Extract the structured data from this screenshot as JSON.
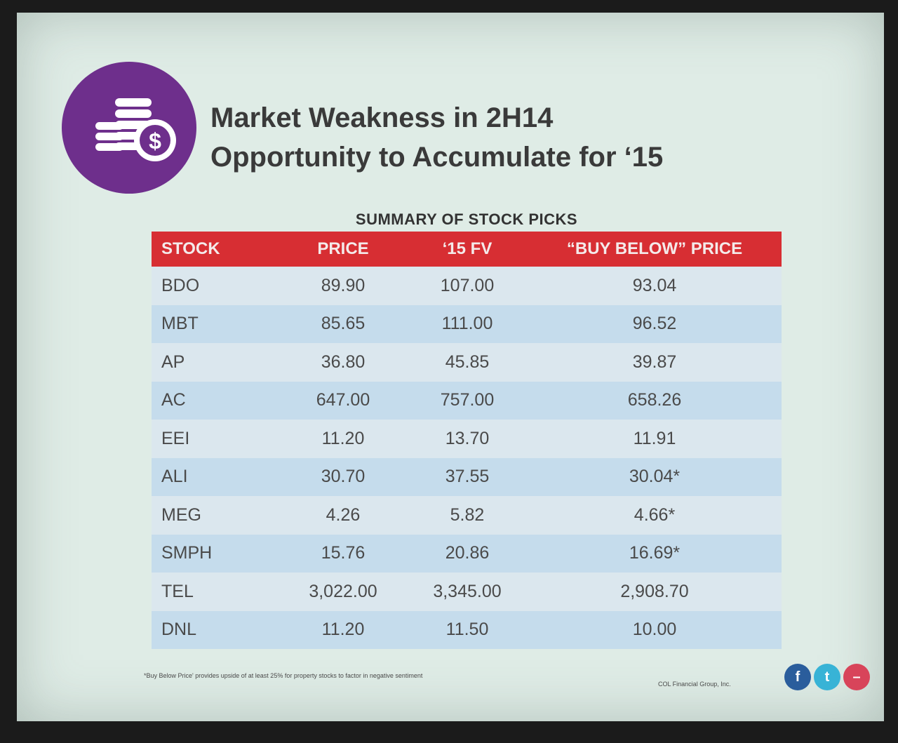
{
  "title": {
    "line1": "Market Weakness in 2H14",
    "line2": "Opportunity to Accumulate for ‘15"
  },
  "logo_icon": "coins-dollar-icon",
  "table": {
    "caption": "SUMMARY OF STOCK PICKS",
    "headers": [
      "STOCK",
      "PRICE",
      "‘15 FV",
      "“BUY BELOW” PRICE"
    ],
    "rows": [
      [
        "BDO",
        "89.90",
        "107.00",
        "93.04"
      ],
      [
        "MBT",
        "85.65",
        "111.00",
        "96.52"
      ],
      [
        "AP",
        "36.80",
        "45.85",
        "39.87"
      ],
      [
        "AC",
        "647.00",
        "757.00",
        "658.26"
      ],
      [
        "EEI",
        "11.20",
        "13.70",
        "11.91"
      ],
      [
        "ALI",
        "30.70",
        "37.55",
        "30.04*"
      ],
      [
        "MEG",
        "4.26",
        "5.82",
        "4.66*"
      ],
      [
        "SMPH",
        "15.76",
        "20.86",
        "16.69*"
      ],
      [
        "TEL",
        "3,022.00",
        "3,345.00",
        "2,908.70"
      ],
      [
        "DNL",
        "11.20",
        "11.50",
        "10.00"
      ]
    ]
  },
  "footnote": "*Buy Below Price' provides upside of at least 25% for property stocks to factor in negative sentiment",
  "company": "COL Financial Group, Inc.",
  "social": [
    {
      "icon": "facebook-icon",
      "glyph": "f"
    },
    {
      "icon": "twitter-icon",
      "glyph": "t"
    },
    {
      "icon": "share-icon",
      "glyph": "–"
    }
  ],
  "colors": {
    "accent": "#d72e33",
    "logo": "#6e2f8c",
    "row_alt": "#c5dcec"
  }
}
